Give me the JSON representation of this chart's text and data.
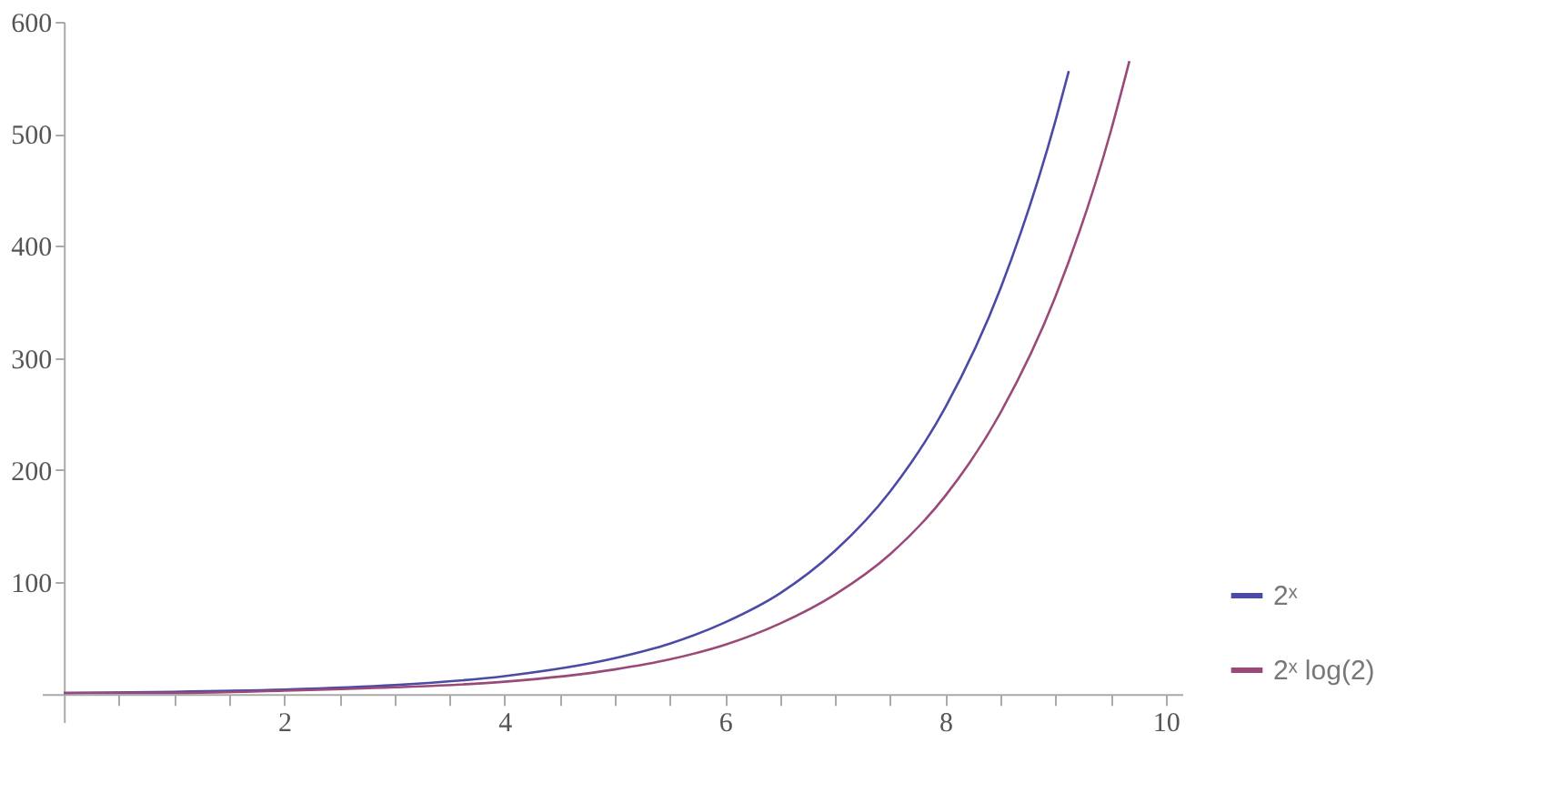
{
  "chart_data": {
    "type": "line",
    "xlim": [
      -0.2,
      10.15
    ],
    "ylim": [
      -25,
      600
    ],
    "xticks": [
      {
        "value": 0.5,
        "label": null
      },
      {
        "value": 1,
        "label": null
      },
      {
        "value": 1.5,
        "label": null
      },
      2,
      {
        "value": 2.5,
        "label": null
      },
      {
        "value": 3,
        "label": null
      },
      {
        "value": 3.5,
        "label": null
      },
      4,
      {
        "value": 4.5,
        "label": null
      },
      {
        "value": 5,
        "label": null
      },
      {
        "value": 5.5,
        "label": null
      },
      6,
      {
        "value": 6.5,
        "label": null
      },
      {
        "value": 7,
        "label": null
      },
      {
        "value": 7.5,
        "label": null
      },
      8,
      {
        "value": 8.5,
        "label": null
      },
      {
        "value": 9,
        "label": null
      },
      {
        "value": 9.5,
        "label": null
      },
      10
    ],
    "yticks": [
      100,
      200,
      300,
      400,
      500,
      600
    ],
    "legend": "bottom right",
    "marker": "none",
    "line_style": "solid",
    "grid": false,
    "series": [
      {
        "name": "2ˣ",
        "color": "#4b4ba6",
        "x": [
          0,
          1,
          2,
          3,
          4,
          5,
          5.5,
          6,
          6.5,
          7,
          7.5,
          8,
          8.5,
          9,
          9.12
        ],
        "values": [
          1,
          2,
          4,
          8,
          16,
          32,
          45,
          64,
          90,
          128,
          181,
          256,
          362,
          512,
          556
        ]
      },
      {
        "name": "2ˣ log(2)",
        "color": "#9a4a78",
        "x": [
          0,
          1,
          2,
          3,
          4,
          5,
          5.5,
          6,
          6.5,
          7,
          7.5,
          8,
          8.5,
          9,
          9.5,
          9.67
        ],
        "values": [
          1,
          1,
          3,
          6,
          11,
          22,
          31,
          44,
          63,
          89,
          125,
          177,
          251,
          355,
          502,
          565
        ]
      }
    ]
  }
}
